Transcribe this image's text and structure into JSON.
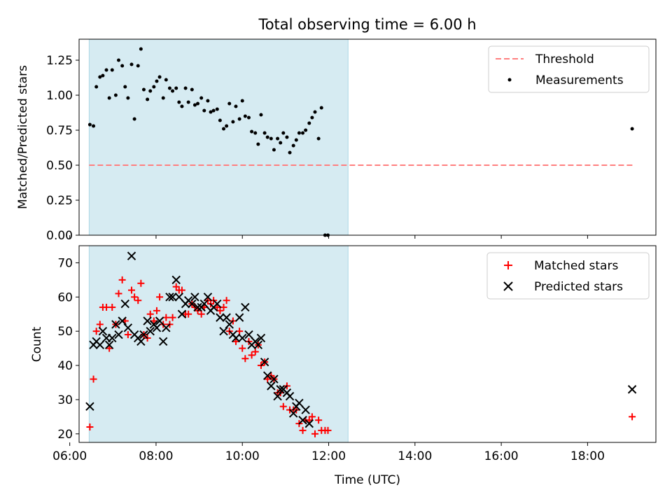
{
  "chart_data": [
    {
      "type": "scatter",
      "title": "Total observing time = 6.00 h",
      "xlabel": "",
      "ylabel": "Matched/Predicted stars",
      "xlim": [
        "06:13",
        "19:35"
      ],
      "ylim": [
        0,
        1.4
      ],
      "yticks": [
        "0.00",
        "0.25",
        "0.50",
        "0.75",
        "1.00",
        "1.25"
      ],
      "observing_window": [
        "06:27",
        "12:27"
      ],
      "legend_position": "upper right",
      "threshold": {
        "name": "Threshold",
        "value": 0.5,
        "x": [
          "06:27",
          "19:03"
        ],
        "color": "#ff7f7f"
      },
      "series": [
        {
          "name": "Measurements",
          "color": "#000000",
          "points": [
            [
              "06:28",
              0.79
            ],
            [
              "06:33",
              0.78
            ],
            [
              "06:37",
              1.06
            ],
            [
              "06:42",
              1.13
            ],
            [
              "06:46",
              1.14
            ],
            [
              "06:51",
              1.18
            ],
            [
              "06:55",
              0.98
            ],
            [
              "06:59",
              1.18
            ],
            [
              "07:04",
              1.0
            ],
            [
              "07:08",
              1.25
            ],
            [
              "07:13",
              1.21
            ],
            [
              "07:17",
              1.06
            ],
            [
              "07:21",
              0.98
            ],
            [
              "07:26",
              1.22
            ],
            [
              "07:30",
              0.83
            ],
            [
              "07:35",
              1.21
            ],
            [
              "07:39",
              1.33
            ],
            [
              "07:43",
              1.04
            ],
            [
              "07:48",
              0.97
            ],
            [
              "07:52",
              1.03
            ],
            [
              "07:57",
              1.06
            ],
            [
              "08:01",
              1.1
            ],
            [
              "08:05",
              1.13
            ],
            [
              "08:10",
              0.98
            ],
            [
              "08:14",
              1.11
            ],
            [
              "08:19",
              1.05
            ],
            [
              "08:23",
              1.03
            ],
            [
              "08:28",
              1.05
            ],
            [
              "08:32",
              0.95
            ],
            [
              "08:36",
              0.92
            ],
            [
              "08:41",
              1.05
            ],
            [
              "08:45",
              0.95
            ],
            [
              "08:50",
              1.04
            ],
            [
              "08:54",
              0.93
            ],
            [
              "08:58",
              0.94
            ],
            [
              "09:03",
              0.98
            ],
            [
              "09:07",
              0.89
            ],
            [
              "09:12",
              0.96
            ],
            [
              "09:16",
              0.88
            ],
            [
              "09:20",
              0.89
            ],
            [
              "09:25",
              0.9
            ],
            [
              "09:29",
              0.82
            ],
            [
              "09:34",
              0.76
            ],
            [
              "09:38",
              0.78
            ],
            [
              "09:42",
              0.94
            ],
            [
              "09:47",
              0.81
            ],
            [
              "09:51",
              0.92
            ],
            [
              "09:56",
              0.83
            ],
            [
              "10:00",
              0.96
            ],
            [
              "10:04",
              0.85
            ],
            [
              "10:09",
              0.84
            ],
            [
              "10:13",
              0.74
            ],
            [
              "10:18",
              0.73
            ],
            [
              "10:22",
              0.65
            ],
            [
              "10:26",
              0.86
            ],
            [
              "10:31",
              0.73
            ],
            [
              "10:35",
              0.7
            ],
            [
              "10:40",
              0.69
            ],
            [
              "10:44",
              0.61
            ],
            [
              "10:49",
              0.69
            ],
            [
              "10:53",
              0.66
            ],
            [
              "10:57",
              0.73
            ],
            [
              "11:02",
              0.7
            ],
            [
              "11:06",
              0.59
            ],
            [
              "11:11",
              0.64
            ],
            [
              "11:15",
              0.68
            ],
            [
              "11:19",
              0.73
            ],
            [
              "11:24",
              0.73
            ],
            [
              "11:28",
              0.75
            ],
            [
              "11:33",
              0.8
            ],
            [
              "11:37",
              0.84
            ],
            [
              "11:41",
              0.88
            ],
            [
              "11:46",
              0.69
            ],
            [
              "11:50",
              0.91
            ],
            [
              "11:55",
              0.0
            ],
            [
              "11:59",
              0.0
            ],
            [
              "19:02",
              0.76
            ]
          ]
        }
      ]
    },
    {
      "type": "scatter",
      "title": "",
      "xlabel": "Time (UTC)",
      "ylabel": "Count",
      "xlim": [
        "06:13",
        "19:35"
      ],
      "ylim": [
        17.5,
        75
      ],
      "xticks": [
        "06:00",
        "08:00",
        "10:00",
        "12:00",
        "14:00",
        "16:00",
        "18:00"
      ],
      "yticks": [
        "20",
        "30",
        "40",
        "50",
        "60",
        "70"
      ],
      "observing_window": [
        "06:27",
        "12:27"
      ],
      "legend_position": "upper right",
      "series": [
        {
          "name": "Matched stars",
          "marker": "plus",
          "color": "#ff0000",
          "points": [
            [
              "06:28",
              22
            ],
            [
              "06:33",
              36
            ],
            [
              "06:37",
              50
            ],
            [
              "06:42",
              52
            ],
            [
              "06:46",
              57
            ],
            [
              "06:51",
              57
            ],
            [
              "06:55",
              45
            ],
            [
              "06:59",
              57
            ],
            [
              "07:04",
              52
            ],
            [
              "07:08",
              61
            ],
            [
              "07:13",
              65
            ],
            [
              "07:17",
              53
            ],
            [
              "07:21",
              49
            ],
            [
              "07:26",
              62
            ],
            [
              "07:30",
              60
            ],
            [
              "07:35",
              59
            ],
            [
              "07:39",
              64
            ],
            [
              "07:43",
              49
            ],
            [
              "07:48",
              48
            ],
            [
              "07:52",
              55
            ],
            [
              "07:57",
              53
            ],
            [
              "08:01",
              56
            ],
            [
              "08:05",
              60
            ],
            [
              "08:10",
              52
            ],
            [
              "08:14",
              54
            ],
            [
              "08:19",
              52
            ],
            [
              "08:23",
              54
            ],
            [
              "08:28",
              63
            ],
            [
              "08:32",
              62
            ],
            [
              "08:36",
              62
            ],
            [
              "08:41",
              55
            ],
            [
              "08:45",
              55
            ],
            [
              "08:50",
              58
            ],
            [
              "08:54",
              57
            ],
            [
              "08:58",
              56
            ],
            [
              "09:03",
              55
            ],
            [
              "09:07",
              57
            ],
            [
              "09:12",
              59
            ],
            [
              "09:16",
              58
            ],
            [
              "09:20",
              59
            ],
            [
              "09:25",
              57
            ],
            [
              "09:29",
              56
            ],
            [
              "09:34",
              57
            ],
            [
              "09:38",
              59
            ],
            [
              "09:42",
              50
            ],
            [
              "09:47",
              53
            ],
            [
              "09:51",
              47
            ],
            [
              "09:56",
              50
            ],
            [
              "10:00",
              45
            ],
            [
              "10:04",
              42
            ],
            [
              "10:09",
              47
            ],
            [
              "10:13",
              43
            ],
            [
              "10:18",
              44
            ],
            [
              "10:22",
              46
            ],
            [
              "10:26",
              40
            ],
            [
              "10:31",
              41
            ],
            [
              "10:35",
              36
            ],
            [
              "10:40",
              37
            ],
            [
              "10:44",
              36
            ],
            [
              "10:49",
              32
            ],
            [
              "10:53",
              32
            ],
            [
              "10:57",
              28
            ],
            [
              "11:02",
              34
            ],
            [
              "11:06",
              27
            ],
            [
              "11:11",
              27
            ],
            [
              "11:15",
              27
            ],
            [
              "11:19",
              23
            ],
            [
              "11:24",
              21
            ],
            [
              "11:28",
              24
            ],
            [
              "11:33",
              24
            ],
            [
              "11:37",
              25
            ],
            [
              "11:41",
              20
            ],
            [
              "11:46",
              24
            ],
            [
              "11:50",
              21
            ],
            [
              "11:55",
              21
            ],
            [
              "11:59",
              21
            ],
            [
              "19:02",
              25
            ]
          ]
        },
        {
          "name": "Predicted stars",
          "marker": "x",
          "color": "#000000",
          "points": [
            [
              "06:28",
              28
            ],
            [
              "06:33",
              46
            ],
            [
              "06:37",
              47
            ],
            [
              "06:42",
              46
            ],
            [
              "06:46",
              50
            ],
            [
              "06:51",
              48
            ],
            [
              "06:55",
              46
            ],
            [
              "06:59",
              48
            ],
            [
              "07:04",
              52
            ],
            [
              "07:08",
              49
            ],
            [
              "07:13",
              53
            ],
            [
              "07:17",
              58
            ],
            [
              "07:21",
              51
            ],
            [
              "07:26",
              72
            ],
            [
              "07:30",
              49
            ],
            [
              "07:35",
              48
            ],
            [
              "07:39",
              47
            ],
            [
              "07:43",
              49
            ],
            [
              "07:48",
              53
            ],
            [
              "07:52",
              50
            ],
            [
              "07:57",
              52
            ],
            [
              "08:01",
              51
            ],
            [
              "08:05",
              53
            ],
            [
              "08:10",
              47
            ],
            [
              "08:14",
              51
            ],
            [
              "08:19",
              60
            ],
            [
              "08:23",
              60
            ],
            [
              "08:28",
              65
            ],
            [
              "08:32",
              60
            ],
            [
              "08:36",
              55
            ],
            [
              "08:41",
              58
            ],
            [
              "08:45",
              59
            ],
            [
              "08:50",
              58
            ],
            [
              "08:54",
              60
            ],
            [
              "08:58",
              57
            ],
            [
              "09:03",
              57
            ],
            [
              "09:07",
              58
            ],
            [
              "09:12",
              60
            ],
            [
              "09:16",
              56
            ],
            [
              "09:20",
              57
            ],
            [
              "09:25",
              58
            ],
            [
              "09:29",
              54
            ],
            [
              "09:34",
              50
            ],
            [
              "09:38",
              54
            ],
            [
              "09:42",
              52
            ],
            [
              "09:47",
              49
            ],
            [
              "09:51",
              48
            ],
            [
              "09:56",
              54
            ],
            [
              "10:00",
              48
            ],
            [
              "10:04",
              57
            ],
            [
              "10:09",
              49
            ],
            [
              "10:13",
              46
            ],
            [
              "10:18",
              47
            ],
            [
              "10:22",
              46
            ],
            [
              "10:26",
              48
            ],
            [
              "10:31",
              41
            ],
            [
              "10:35",
              37
            ],
            [
              "10:40",
              34
            ],
            [
              "10:44",
              36
            ],
            [
              "10:49",
              31
            ],
            [
              "10:53",
              33
            ],
            [
              "10:57",
              33
            ],
            [
              "11:02",
              32
            ],
            [
              "11:06",
              31
            ],
            [
              "11:11",
              26
            ],
            [
              "11:15",
              28
            ],
            [
              "11:19",
              29
            ],
            [
              "11:24",
              24
            ],
            [
              "11:28",
              27
            ],
            [
              "11:33",
              23
            ],
            [
              "19:02",
              33
            ]
          ]
        }
      ]
    }
  ]
}
